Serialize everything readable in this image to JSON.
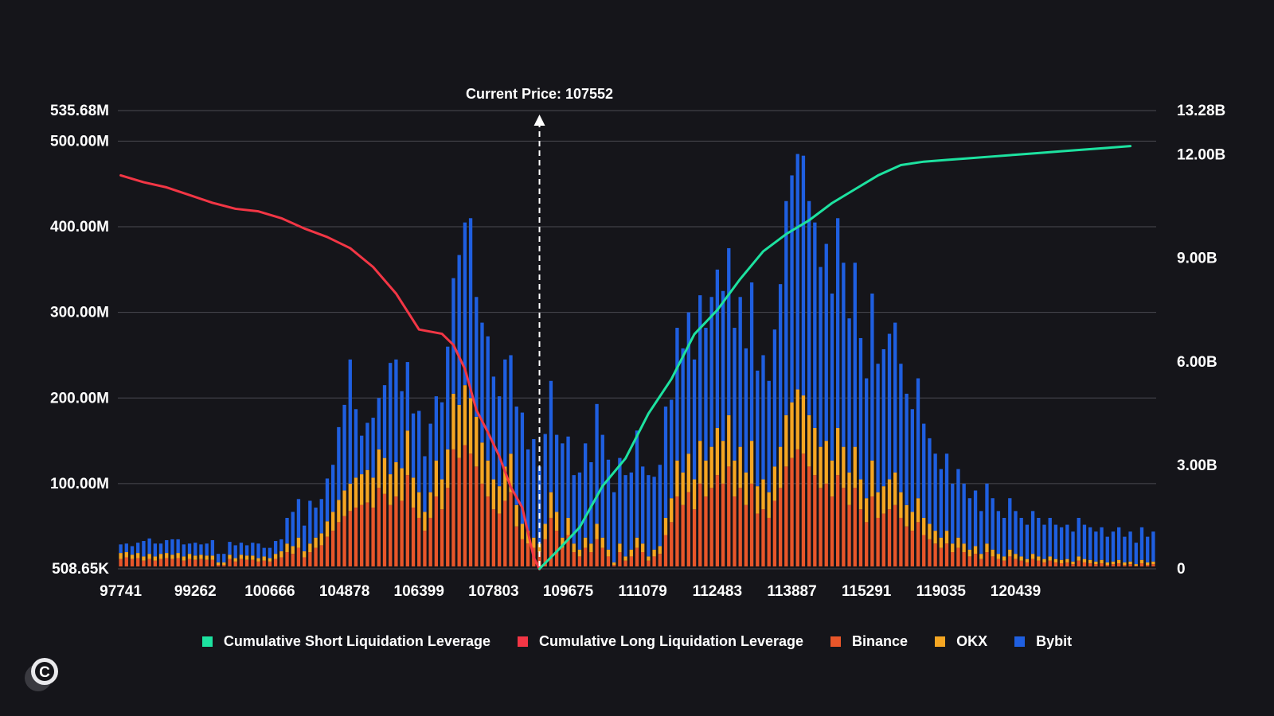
{
  "chart_data": {
    "type": "bar",
    "annotation": "Current Price: 107552",
    "current_price_bar_index": 73,
    "bars_per_category": 13,
    "categories": [
      "97741",
      "99262",
      "100666",
      "104878",
      "106399",
      "107803",
      "109675",
      "111079",
      "112483",
      "113887",
      "115291",
      "119035",
      "120439"
    ],
    "y_left_ticks": [
      "508.65K",
      "100.00M",
      "200.00M",
      "300.00M",
      "400.00M",
      "500.00M",
      "535.68M"
    ],
    "y_right_ticks": [
      "0",
      "3.00B",
      "6.00B",
      "9.00B",
      "12.00B",
      "13.28B"
    ],
    "ylim_left": [
      0.50865,
      535.68
    ],
    "ylim_right": [
      0,
      13.28
    ],
    "left_unit": "M",
    "right_unit": "B",
    "stacked_series": [
      {
        "name": "Binance",
        "color": "#e8562a",
        "values": [
          12,
          14,
          12,
          13,
          10,
          12,
          10,
          12,
          13,
          12,
          13,
          10,
          12,
          11,
          12,
          11,
          11,
          5,
          5,
          12,
          9,
          12,
          11,
          11,
          9,
          10,
          9,
          12,
          14,
          20,
          18,
          25,
          14,
          20,
          25,
          28,
          38,
          45,
          55,
          62,
          68,
          72,
          75,
          78,
          72,
          95,
          88,
          75,
          85,
          80,
          110,
          72,
          60,
          45,
          60,
          85,
          70,
          95,
          140,
          130,
          145,
          135,
          120,
          100,
          85,
          70,
          65,
          80,
          90,
          50,
          35,
          30,
          25,
          20,
          35,
          60,
          45,
          25,
          40,
          20,
          15,
          25,
          20,
          35,
          25,
          15,
          5,
          20,
          10,
          15,
          25,
          20,
          10,
          15,
          18,
          40,
          55,
          85,
          75,
          90,
          70,
          100,
          85,
          95,
          110,
          100,
          120,
          85,
          95,
          75,
          100,
          65,
          70,
          60,
          80,
          95,
          120,
          130,
          140,
          135,
          120,
          110,
          95,
          100,
          85,
          110,
          95,
          75,
          95,
          70,
          55,
          85,
          60,
          65,
          70,
          75,
          60,
          50,
          45,
          55,
          40,
          35,
          30,
          25,
          30,
          20,
          25,
          20,
          15,
          18,
          12,
          20,
          15,
          12,
          10,
          15,
          12,
          10,
          8,
          12,
          10,
          8,
          10,
          8,
          7,
          8,
          6,
          10,
          8,
          7,
          6,
          7,
          5,
          6,
          7,
          5,
          6,
          4,
          7,
          5,
          6
        ]
      },
      {
        "name": "OKX",
        "color": "#f5a623",
        "values": [
          7,
          6,
          5,
          6,
          5,
          6,
          5,
          6,
          6,
          5,
          6,
          5,
          6,
          5,
          5,
          5,
          5,
          3,
          3,
          5,
          4,
          5,
          5,
          5,
          4,
          5,
          4,
          6,
          7,
          10,
          9,
          12,
          7,
          10,
          12,
          14,
          18,
          22,
          26,
          30,
          32,
          35,
          36,
          38,
          35,
          45,
          42,
          36,
          40,
          38,
          52,
          35,
          30,
          22,
          30,
          42,
          35,
          45,
          65,
          62,
          70,
          65,
          58,
          48,
          42,
          35,
          32,
          40,
          45,
          25,
          18,
          15,
          12,
          10,
          18,
          30,
          22,
          12,
          20,
          10,
          8,
          12,
          10,
          18,
          12,
          8,
          3,
          10,
          5,
          8,
          12,
          10,
          5,
          8,
          9,
          20,
          28,
          42,
          38,
          45,
          35,
          50,
          42,
          48,
          55,
          50,
          60,
          42,
          48,
          38,
          50,
          32,
          35,
          30,
          40,
          48,
          60,
          65,
          70,
          68,
          60,
          55,
          48,
          50,
          42,
          55,
          48,
          38,
          48,
          35,
          28,
          42,
          30,
          32,
          35,
          38,
          30,
          25,
          22,
          28,
          20,
          18,
          15,
          12,
          15,
          10,
          12,
          10,
          8,
          9,
          6,
          10,
          8,
          6,
          5,
          8,
          6,
          5,
          4,
          6,
          5,
          4,
          5,
          4,
          4,
          4,
          3,
          5,
          4,
          4,
          3,
          4,
          3,
          3,
          4,
          3,
          3,
          2,
          4,
          3,
          3
        ]
      },
      {
        "name": "Bybit",
        "color": "#1f5fe0",
        "values": [
          10,
          10,
          10,
          12,
          18,
          18,
          15,
          12,
          15,
          18,
          16,
          14,
          12,
          15,
          12,
          14,
          18,
          10,
          10,
          15,
          15,
          14,
          12,
          15,
          17,
          10,
          12,
          15,
          14,
          30,
          40,
          45,
          30,
          50,
          35,
          40,
          50,
          55,
          85,
          100,
          145,
          80,
          45,
          55,
          70,
          60,
          85,
          130,
          120,
          90,
          80,
          75,
          95,
          65,
          80,
          75,
          90,
          120,
          135,
          175,
          190,
          210,
          140,
          140,
          145,
          120,
          105,
          125,
          115,
          115,
          130,
          95,
          115,
          90,
          105,
          130,
          90,
          110,
          95,
          80,
          90,
          110,
          95,
          140,
          120,
          105,
          82,
          100,
          95,
          90,
          125,
          90,
          95,
          85,
          95,
          130,
          115,
          155,
          145,
          165,
          140,
          170,
          155,
          175,
          185,
          175,
          195,
          155,
          175,
          145,
          185,
          135,
          145,
          130,
          160,
          190,
          250,
          265,
          275,
          280,
          250,
          240,
          210,
          230,
          195,
          245,
          215,
          180,
          215,
          165,
          140,
          195,
          150,
          160,
          170,
          175,
          150,
          130,
          120,
          140,
          110,
          100,
          90,
          80,
          90,
          70,
          80,
          70,
          60,
          65,
          50,
          70,
          60,
          50,
          45,
          60,
          50,
          45,
          40,
          50,
          45,
          40,
          45,
          40,
          38,
          40,
          35,
          45,
          40,
          38,
          35,
          38,
          30,
          35,
          38,
          30,
          35,
          25,
          38,
          30,
          35
        ]
      }
    ],
    "line_series": [
      {
        "name": "Cumulative Long Liquidation Leverage",
        "color": "#f23645",
        "axis": "left",
        "x": [
          0,
          4,
          8,
          12,
          16,
          20,
          24,
          28,
          32,
          36,
          40,
          44,
          48,
          52,
          56,
          58,
          60,
          62,
          64,
          66,
          68,
          70,
          72,
          73
        ],
        "y": [
          460,
          452,
          446,
          437,
          428,
          421,
          418,
          410,
          398,
          388,
          375,
          353,
          322,
          280,
          275,
          262,
          234,
          186,
          160,
          132,
          96,
          72,
          14,
          0
        ]
      },
      {
        "name": "Cumulative Short Liquidation Leverage",
        "color": "#1de2a0",
        "axis": "right",
        "x": [
          73,
          76,
          80,
          84,
          88,
          92,
          96,
          100,
          104,
          108,
          112,
          116,
          120,
          124,
          128,
          132,
          136,
          140,
          144,
          148,
          152,
          156,
          160,
          164,
          168,
          172,
          176
        ],
        "y": [
          0,
          0.5,
          1.2,
          2.4,
          3.2,
          4.5,
          5.5,
          6.8,
          7.5,
          8.4,
          9.2,
          9.7,
          10.1,
          10.6,
          11.0,
          11.4,
          11.7,
          11.8,
          11.85,
          11.9,
          11.95,
          12.0,
          12.05,
          12.1,
          12.15,
          12.2,
          12.25
        ]
      }
    ]
  },
  "legend": [
    {
      "label": "Cumulative Short Liquidation Leverage",
      "color": "#1de2a0"
    },
    {
      "label": "Cumulative Long Liquidation Leverage",
      "color": "#f23645"
    },
    {
      "label": "Binance",
      "color": "#e8562a"
    },
    {
      "label": "OKX",
      "color": "#f5a623"
    },
    {
      "label": "Bybit",
      "color": "#1f5fe0"
    }
  ],
  "logo": {
    "letter": "C"
  },
  "colors": {
    "background": "#15151a",
    "grid": "#4a4a52",
    "text": "#ffffff"
  }
}
